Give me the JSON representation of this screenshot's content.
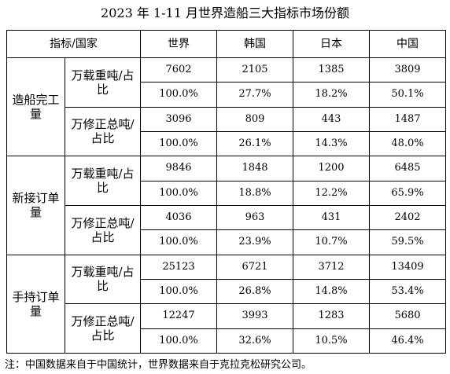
{
  "title": "2023 年 1-11 月世界造船三大指标市场份额",
  "table": {
    "corner_header": "指标/国家",
    "columns": [
      "世界",
      "韩国",
      "日本",
      "中国"
    ],
    "groups": [
      {
        "name": "造船完工量",
        "units": [
          {
            "label": "万载重吨/占比",
            "values": [
              "7602",
              "2105",
              "1385",
              "3809"
            ],
            "shares": [
              "100.0%",
              "27.7%",
              "18.2%",
              "50.1%"
            ]
          },
          {
            "label": "万修正总吨/占比",
            "values": [
              "3096",
              "809",
              "443",
              "1487"
            ],
            "shares": [
              "100.0%",
              "26.1%",
              "14.3%",
              "48.0%"
            ]
          }
        ]
      },
      {
        "name": "新接订单量",
        "units": [
          {
            "label": "万载重吨/占比",
            "values": [
              "9846",
              "1848",
              "1200",
              "6485"
            ],
            "shares": [
              "100.0%",
              "18.8%",
              "12.2%",
              "65.9%"
            ]
          },
          {
            "label": "万修正总吨/占比",
            "values": [
              "4036",
              "963",
              "431",
              "2402"
            ],
            "shares": [
              "100.0%",
              "23.9%",
              "10.7%",
              "59.5%"
            ]
          }
        ]
      },
      {
        "name": "手持订单量",
        "units": [
          {
            "label": "万载重吨/占比",
            "values": [
              "25123",
              "6721",
              "3712",
              "13409"
            ],
            "shares": [
              "100.0%",
              "26.8%",
              "14.8%",
              "53.4%"
            ]
          },
          {
            "label": "万修正总吨/占比",
            "values": [
              "12247",
              "3993",
              "1283",
              "5680"
            ],
            "shares": [
              "100.0%",
              "32.6%",
              "10.5%",
              "46.4%"
            ]
          }
        ]
      }
    ]
  },
  "footnote": "注：中国数据来自于中国统计，世界数据来自于克拉克松研究公司。"
}
